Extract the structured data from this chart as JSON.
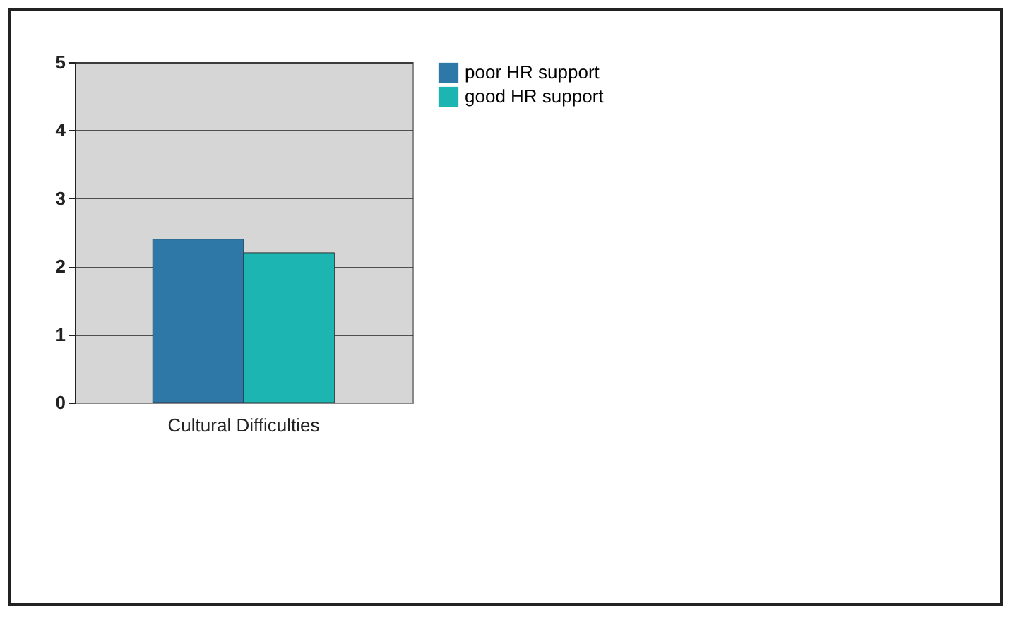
{
  "chart_data": {
    "type": "bar",
    "categories": [
      "Cultural Difficulties"
    ],
    "series": [
      {
        "name": "poor HR support",
        "color": "#2e78a8",
        "values": [
          2.4
        ]
      },
      {
        "name": "good HR support",
        "color": "#1cb5b1",
        "values": [
          2.2
        ]
      }
    ],
    "ylim": [
      0,
      5
    ],
    "yticks": [
      0,
      1,
      2,
      3,
      4,
      5
    ],
    "grid": "y",
    "legend": "right"
  }
}
